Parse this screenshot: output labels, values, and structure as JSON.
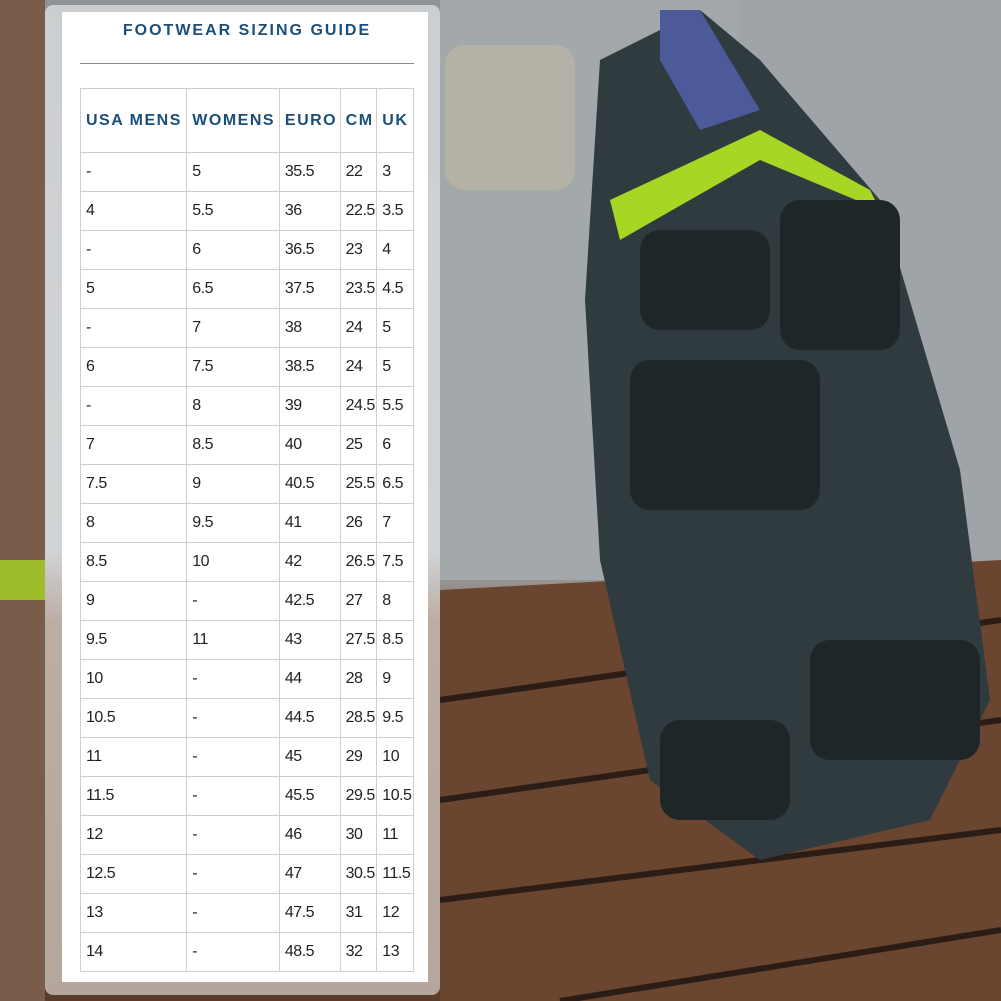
{
  "header": {
    "title": "FOOTWEAR SIZING GUIDE"
  },
  "table": {
    "columns": [
      "USA MENS",
      "WOMENS",
      "EURO",
      "CM",
      "UK"
    ],
    "rows": [
      [
        "-",
        "5",
        "35.5",
        "22",
        "3"
      ],
      [
        "4",
        "5.5",
        "36",
        "22.5",
        "3.5"
      ],
      [
        "-",
        "6",
        "36.5",
        "23",
        "4"
      ],
      [
        "5",
        "6.5",
        "37.5",
        "23.5",
        "4.5"
      ],
      [
        "-",
        "7",
        "38",
        "24",
        "5"
      ],
      [
        "6",
        "7.5",
        "38.5",
        "24",
        "5"
      ],
      [
        "-",
        "8",
        "39",
        "24.5",
        "5.5"
      ],
      [
        "7",
        "8.5",
        "40",
        "25",
        "6"
      ],
      [
        "7.5",
        "9",
        "40.5",
        "25.5",
        "6.5"
      ],
      [
        "8",
        "9.5",
        "41",
        "26",
        "7"
      ],
      [
        "8.5",
        "10",
        "42",
        "26.5",
        "7.5"
      ],
      [
        "9",
        "-",
        "42.5",
        "27",
        "8"
      ],
      [
        "9.5",
        "11",
        "43",
        "27.5",
        "8.5"
      ],
      [
        "10",
        "-",
        "44",
        "28",
        "9"
      ],
      [
        "10.5",
        "-",
        "44.5",
        "28.5",
        "9.5"
      ],
      [
        "11",
        "-",
        "45",
        "29",
        "10"
      ],
      [
        "11.5",
        "-",
        "45.5",
        "29.5",
        "10.5"
      ],
      [
        "12",
        "-",
        "46",
        "30",
        "11"
      ],
      [
        "12.5",
        "-",
        "47",
        "30.5",
        "11.5"
      ],
      [
        "13",
        "-",
        "47.5",
        "31",
        "12"
      ],
      [
        "14",
        "-",
        "48.5",
        "32",
        "13"
      ]
    ]
  }
}
